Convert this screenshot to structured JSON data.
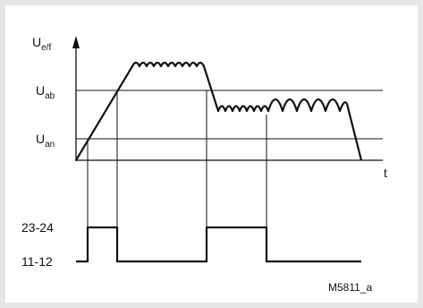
{
  "diagram": {
    "y_axis_label_main": "U",
    "y_axis_label_sub": "e/f",
    "x_axis_label": "t",
    "level_upper_main": "U",
    "level_upper_sub": "ab",
    "level_lower_main": "U",
    "level_lower_sub": "an",
    "relay_upper_label": "23-24",
    "relay_lower_label": "11-12",
    "figure_reference": "M5811_a",
    "colors": {
      "line": "#111111",
      "background": "#ffffff",
      "border": "#e6e6e6"
    }
  }
}
